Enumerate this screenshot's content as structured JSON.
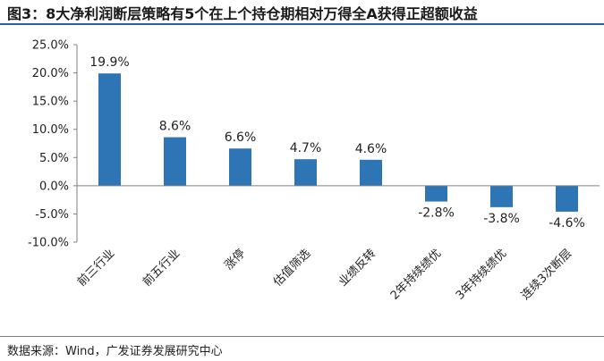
{
  "title": "图3：8大净利润断层策略有5个在上个持仓期相对万得全A获得正超额收益",
  "source": "数据来源：Wind，广发证券发展研究中心",
  "colors": {
    "bar": "#2e75b6",
    "axis": "#808080",
    "title_rule": "#2f5f9e"
  },
  "chart_data": {
    "type": "bar",
    "title": "",
    "xlabel": "",
    "ylabel": "",
    "categories": [
      "前三行业",
      "前五行业",
      "涨停",
      "估值筛选",
      "业绩反转",
      "2年持续绩优",
      "3年持续绩优",
      "连续3次断层"
    ],
    "values": [
      19.9,
      8.6,
      6.6,
      4.7,
      4.6,
      -2.8,
      -3.8,
      -4.6
    ],
    "value_labels": [
      "19.9%",
      "8.6%",
      "6.6%",
      "4.7%",
      "4.6%",
      "-2.8%",
      "-3.8%",
      "-4.6%"
    ],
    "ylim": [
      -10,
      25
    ],
    "yticks": [
      25,
      20,
      15,
      10,
      5,
      0,
      -5,
      -10
    ],
    "ytick_labels": [
      "25.0%",
      "20.0%",
      "15.0%",
      "10.0%",
      "5.0%",
      "0.0%",
      "-5.0%",
      "-10.0%"
    ],
    "grid": false,
    "legend": "none"
  }
}
